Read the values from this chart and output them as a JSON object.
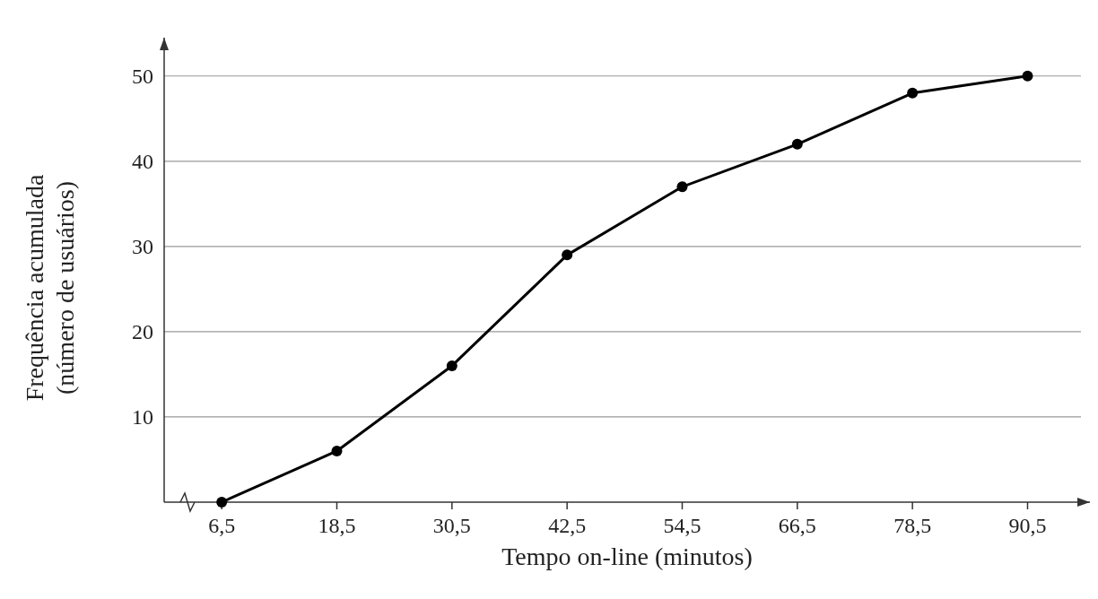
{
  "chart_data": {
    "type": "line",
    "xlabel": "Tempo on-line (minutos)",
    "ylabel": "Frequência acumulada\n(número de usuários)",
    "x": [
      6.5,
      18.5,
      30.5,
      42.5,
      54.5,
      66.5,
      78.5,
      90.5
    ],
    "series": [
      {
        "color": "#000000",
        "values": [
          0,
          6,
          16,
          29,
          37,
          42,
          48,
          50
        ]
      }
    ],
    "xlim": [
      0.5,
      97
    ],
    "xticks": [
      {
        "value": 6.5,
        "label": "6,5"
      },
      {
        "value": 18.5,
        "label": "18,5"
      },
      {
        "value": 30.5,
        "label": "30,5"
      },
      {
        "value": 42.5,
        "label": "42,5"
      },
      {
        "value": 54.5,
        "label": "54,5"
      },
      {
        "value": 66.5,
        "label": "66,5"
      },
      {
        "value": 78.5,
        "label": "78,5"
      },
      {
        "value": 90.5,
        "label": "90,5"
      }
    ],
    "ylim": [
      0,
      54.5
    ],
    "yticks": [
      10,
      20,
      30,
      40,
      50
    ],
    "grid": "y",
    "marker": "circle",
    "line_style": "solid"
  }
}
